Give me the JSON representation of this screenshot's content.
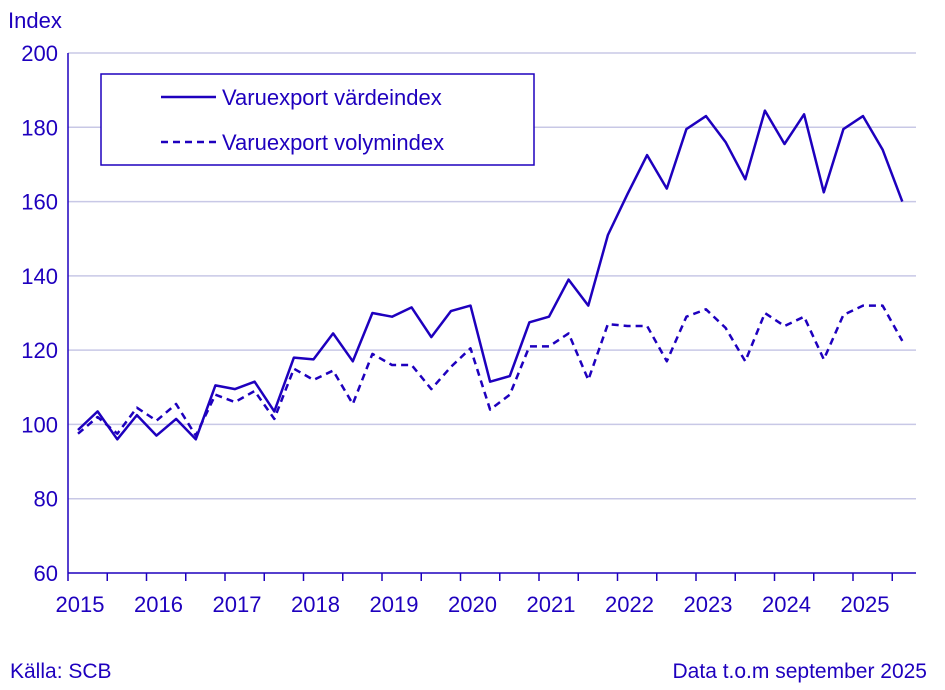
{
  "footer": {
    "source": "Källa: SCB",
    "data_note": "Data t.o.m september 2025"
  },
  "chart_data": {
    "type": "line",
    "ylabel": "Index",
    "ylim": [
      60,
      200
    ],
    "y_ticks": [
      60,
      80,
      100,
      120,
      140,
      160,
      180,
      200
    ],
    "x_tick_labels": [
      "2015",
      "2016",
      "2017",
      "2018",
      "2019",
      "2020",
      "2021",
      "2022",
      "2023",
      "2024",
      "2025"
    ],
    "x": [
      "2015Q1",
      "2015Q2",
      "2015Q3",
      "2015Q4",
      "2016Q1",
      "2016Q2",
      "2016Q3",
      "2016Q4",
      "2017Q1",
      "2017Q2",
      "2017Q3",
      "2017Q4",
      "2018Q1",
      "2018Q2",
      "2018Q3",
      "2018Q4",
      "2019Q1",
      "2019Q2",
      "2019Q3",
      "2019Q4",
      "2020Q1",
      "2020Q2",
      "2020Q3",
      "2020Q4",
      "2021Q1",
      "2021Q2",
      "2021Q3",
      "2021Q4",
      "2022Q1",
      "2022Q2",
      "2022Q3",
      "2022Q4",
      "2023Q1",
      "2023Q2",
      "2023Q3",
      "2023Q4",
      "2024Q1",
      "2024Q2",
      "2024Q3",
      "2024Q4",
      "2025Q1",
      "2025Q2",
      "2025Q3"
    ],
    "series": [
      {
        "name": "Varuexport värdeindex",
        "style": "solid",
        "color": "#1e00be",
        "values": [
          98.5,
          103.5,
          96,
          102.5,
          97,
          101.5,
          96,
          110.5,
          109.5,
          111.5,
          103.5,
          118,
          117.5,
          124.5,
          117,
          130,
          129,
          131.5,
          123.5,
          130.5,
          132,
          111.5,
          113,
          127.5,
          129,
          139,
          132,
          151,
          162,
          172.5,
          163.5,
          179.5,
          183,
          176,
          166,
          184.5,
          175.5,
          183.5,
          162.5,
          179.5,
          183,
          174,
          160
        ]
      },
      {
        "name": "Varuexport volymindex",
        "style": "dashed",
        "color": "#1e00be",
        "values": [
          97.5,
          102,
          97.5,
          104.5,
          101,
          105.5,
          97,
          108,
          106,
          109,
          101.5,
          115,
          112,
          114.5,
          105.5,
          119,
          116,
          116,
          109.5,
          115.5,
          120.5,
          104,
          108,
          121,
          121,
          124.5,
          112,
          127,
          126.5,
          126.5,
          117,
          129,
          131,
          126,
          117,
          130,
          126.5,
          129,
          117.5,
          129.5,
          132,
          132,
          122.5
        ]
      }
    ],
    "legend": "top-left",
    "grid": "horizontal"
  }
}
